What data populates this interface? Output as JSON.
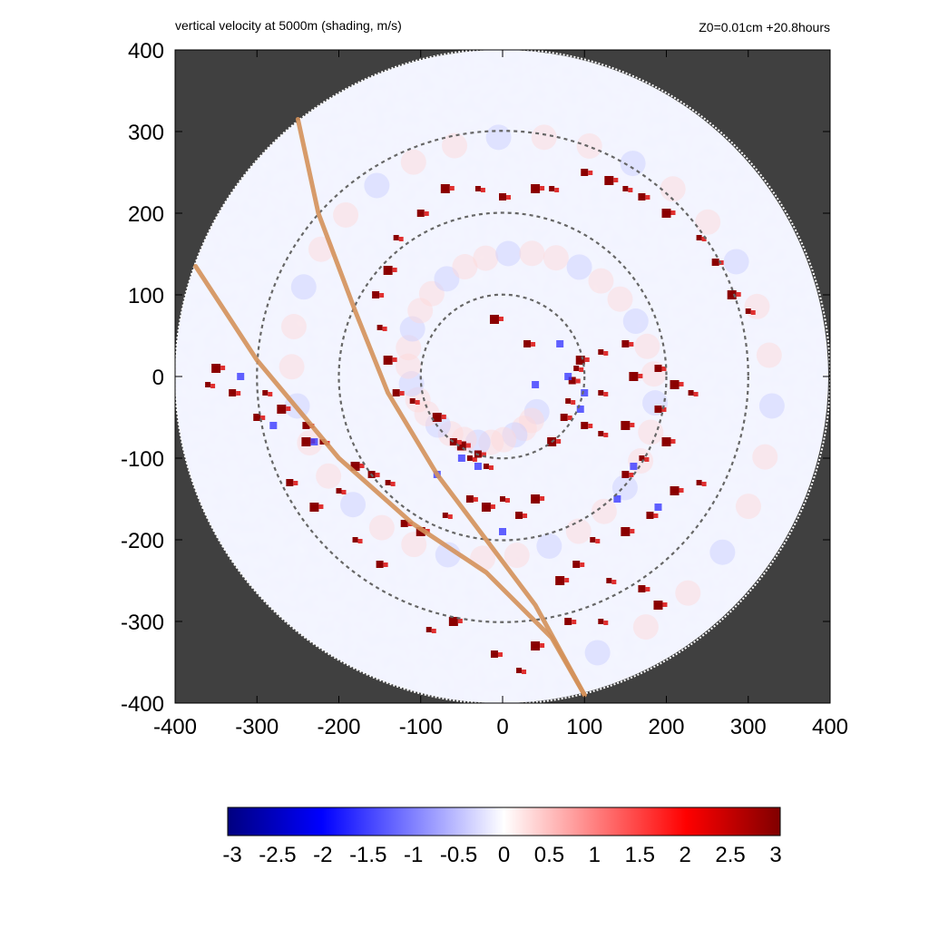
{
  "header": {
    "title": "vertical velocity at 5000m (shading, m/s)",
    "info": "Z0=0.01cm  +20.8hours"
  },
  "chart_data": {
    "type": "heatmap",
    "title": "vertical velocity at 5000m (shading, m/s)",
    "annotation": "Z0=0.01cm  +20.8hours",
    "xlim": [
      -400,
      400
    ],
    "ylim": [
      -400,
      400
    ],
    "x_ticks": [
      -400,
      -300,
      -200,
      -100,
      0,
      100,
      200,
      300,
      400
    ],
    "y_ticks": [
      -400,
      -300,
      -200,
      -100,
      0,
      100,
      200,
      300,
      400
    ],
    "x_tick_labels": [
      "-400",
      "-300",
      "-200",
      "-100",
      "0",
      "100",
      "200",
      "300",
      "400"
    ],
    "y_tick_labels": [
      "-400",
      "-300",
      "-200",
      "-100",
      "0",
      "100",
      "200",
      "300",
      "400"
    ],
    "domain_radius": 400,
    "range_rings": [
      100,
      200,
      300
    ],
    "colorbar": {
      "min": -3,
      "max": 3,
      "ticks": [
        -3,
        -2.5,
        -2,
        -1.5,
        -1,
        -0.5,
        0,
        0.5,
        1,
        1.5,
        2,
        2.5,
        3
      ],
      "tick_labels": [
        "-3",
        "-2.5",
        "-2",
        "-1.5",
        "-1",
        "-0.5",
        "0",
        "0.5",
        "1",
        "1.5",
        "2",
        "2.5",
        "3"
      ],
      "colors": [
        "#000080",
        "#0000ff",
        "#ffffff",
        "#ff0000",
        "#800000"
      ]
    },
    "colors": {
      "outside_domain": "#404040",
      "ring": "#666666",
      "track": "#d4915a"
    },
    "tracks": [
      [
        [
          -250,
          315
        ],
        [
          -225,
          200
        ],
        [
          -180,
          80
        ],
        [
          -140,
          -20
        ],
        [
          -80,
          -120
        ],
        [
          -20,
          -200
        ],
        [
          40,
          -280
        ],
        [
          100,
          -390
        ]
      ],
      [
        [
          -375,
          135
        ],
        [
          -300,
          20
        ],
        [
          -200,
          -100
        ],
        [
          -110,
          -180
        ],
        [
          -20,
          -240
        ],
        [
          60,
          -320
        ],
        [
          100,
          -390
        ]
      ]
    ],
    "strong_updrafts": [
      [
        90,
        10
      ],
      [
        85,
        -5
      ],
      [
        95,
        20
      ],
      [
        80,
        -30
      ],
      [
        75,
        -50
      ],
      [
        60,
        -80
      ],
      [
        -40,
        -100
      ],
      [
        -30,
        -95
      ],
      [
        -50,
        -85
      ],
      [
        -20,
        -110
      ],
      [
        -60,
        -80
      ],
      [
        -80,
        -50
      ],
      [
        -110,
        -30
      ],
      [
        -130,
        -20
      ],
      [
        -140,
        20
      ],
      [
        -150,
        60
      ],
      [
        -155,
        100
      ],
      [
        -140,
        130
      ],
      [
        -130,
        170
      ],
      [
        -100,
        200
      ],
      [
        -70,
        230
      ],
      [
        -30,
        230
      ],
      [
        0,
        220
      ],
      [
        40,
        230
      ],
      [
        60,
        230
      ],
      [
        100,
        250
      ],
      [
        130,
        240
      ],
      [
        150,
        230
      ],
      [
        170,
        220
      ],
      [
        200,
        200
      ],
      [
        240,
        170
      ],
      [
        260,
        140
      ],
      [
        280,
        100
      ],
      [
        300,
        80
      ],
      [
        190,
        10
      ],
      [
        210,
        -10
      ],
      [
        230,
        -20
      ],
      [
        190,
        -40
      ],
      [
        150,
        -60
      ],
      [
        120,
        -70
      ],
      [
        100,
        -60
      ],
      [
        200,
        -80
      ],
      [
        170,
        -100
      ],
      [
        150,
        -120
      ],
      [
        210,
        -140
      ],
      [
        240,
        -130
      ],
      [
        180,
        -170
      ],
      [
        150,
        -190
      ],
      [
        110,
        -200
      ],
      [
        90,
        -230
      ],
      [
        70,
        -250
      ],
      [
        130,
        -250
      ],
      [
        170,
        -260
      ],
      [
        190,
        -280
      ],
      [
        120,
        -300
      ],
      [
        80,
        -300
      ],
      [
        40,
        -330
      ],
      [
        20,
        -360
      ],
      [
        -10,
        -340
      ],
      [
        -60,
        -300
      ],
      [
        -90,
        -310
      ],
      [
        -120,
        -180
      ],
      [
        -100,
        -190
      ],
      [
        -70,
        -170
      ],
      [
        -40,
        -150
      ],
      [
        -20,
        -160
      ],
      [
        0,
        -150
      ],
      [
        20,
        -170
      ],
      [
        40,
        -150
      ],
      [
        -140,
        -130
      ],
      [
        -160,
        -120
      ],
      [
        -180,
        -110
      ],
      [
        -220,
        -80
      ],
      [
        -240,
        -60
      ],
      [
        -270,
        -40
      ],
      [
        -290,
        -20
      ],
      [
        -330,
        -20
      ],
      [
        -350,
        10
      ],
      [
        -360,
        -10
      ],
      [
        -300,
        -50
      ],
      [
        -240,
        -80
      ],
      [
        120,
        30
      ],
      [
        150,
        40
      ],
      [
        160,
        0
      ],
      [
        120,
        -20
      ],
      [
        30,
        40
      ],
      [
        -10,
        70
      ],
      [
        -200,
        -140
      ],
      [
        -260,
        -130
      ],
      [
        -230,
        -160
      ],
      [
        -180,
        -200
      ],
      [
        -150,
        -230
      ]
    ],
    "strong_downdrafts": [
      [
        100,
        -20
      ],
      [
        95,
        -40
      ],
      [
        80,
        0
      ],
      [
        -30,
        -110
      ],
      [
        -50,
        -100
      ],
      [
        -230,
        -80
      ],
      [
        -280,
        -60
      ],
      [
        -320,
        0
      ],
      [
        160,
        -110
      ],
      [
        190,
        -160
      ],
      [
        140,
        -150
      ],
      [
        40,
        -10
      ],
      [
        70,
        40
      ],
      [
        -80,
        -120
      ],
      [
        0,
        -190
      ]
    ]
  }
}
